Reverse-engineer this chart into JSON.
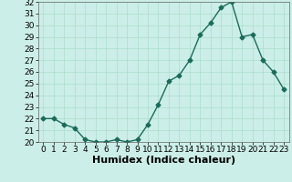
{
  "x": [
    0,
    1,
    2,
    3,
    4,
    5,
    6,
    7,
    8,
    9,
    10,
    11,
    12,
    13,
    14,
    15,
    16,
    17,
    18,
    19,
    20,
    21,
    22,
    23
  ],
  "y": [
    22.0,
    22.0,
    21.5,
    21.2,
    20.2,
    20.0,
    20.0,
    20.2,
    20.0,
    20.2,
    21.5,
    23.2,
    25.2,
    25.7,
    27.0,
    29.2,
    30.2,
    31.5,
    32.0,
    29.0,
    29.2,
    27.0,
    26.0,
    24.5
  ],
  "title": "",
  "xlabel": "Humidex (Indice chaleur)",
  "ylabel": "",
  "ylim": [
    20,
    32
  ],
  "xlim": [
    -0.5,
    23.5
  ],
  "yticks": [
    20,
    21,
    22,
    23,
    24,
    25,
    26,
    27,
    28,
    29,
    30,
    31,
    32
  ],
  "xticks": [
    0,
    1,
    2,
    3,
    4,
    5,
    6,
    7,
    8,
    9,
    10,
    11,
    12,
    13,
    14,
    15,
    16,
    17,
    18,
    19,
    20,
    21,
    22,
    23
  ],
  "line_color": "#1a6b5a",
  "marker": "D",
  "marker_size": 2.5,
  "bg_color": "#cceee8",
  "grid_color": "#aaddcc",
  "fig_bg": "#cceee8",
  "xlabel_fontsize": 8,
  "tick_fontsize": 6.5,
  "line_width": 1.0
}
